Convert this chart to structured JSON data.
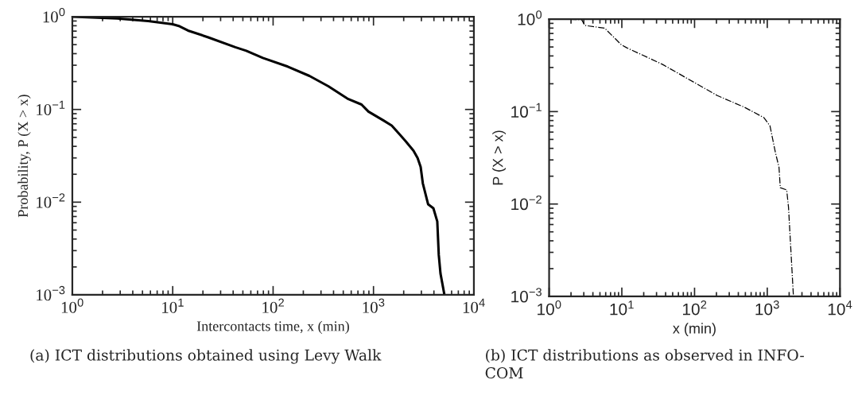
{
  "chart_data": [
    {
      "type": "line",
      "xlabel": "Intercontacts time, x (min)",
      "ylabel": "Probability, P (X > x)",
      "log": "xy",
      "grid": false,
      "marker": "none",
      "xlim": [
        1,
        10000
      ],
      "ylim": [
        0.001,
        1
      ],
      "xticks": [
        {
          "value": 1,
          "label": "10$^{0}$"
        },
        {
          "value": 10,
          "label": "10$^{1}$"
        },
        {
          "value": 100,
          "label": "10$^{2}$"
        },
        {
          "value": 1000,
          "label": "10$^{3}$"
        },
        {
          "value": 10000,
          "label": "10$^{4}$"
        }
      ],
      "yticks": [
        {
          "value": 0.001,
          "label": "10$^{−3}$"
        },
        {
          "value": 0.01,
          "label": "10$^{−2}$"
        },
        {
          "value": 0.1,
          "label": "10$^{−1}$"
        },
        {
          "value": 1,
          "label": "10$^{0}$"
        }
      ],
      "series": [
        {
          "color": "#000000",
          "line_style": "solid",
          "x": [
            1,
            2.8,
            5.7,
            10,
            11.7,
            14.2,
            22.6,
            42,
            54,
            79,
            140,
            230,
            355,
            550,
            760,
            890,
            1260,
            1520,
            1820,
            2070,
            2500,
            2750,
            2950,
            3100,
            3500,
            3950,
            4320,
            4470,
            4650,
            5090
          ],
          "values": [
            1,
            0.96,
            0.9,
            0.83,
            0.79,
            0.71,
            0.6,
            0.47,
            0.43,
            0.36,
            0.29,
            0.23,
            0.178,
            0.131,
            0.113,
            0.095,
            0.076,
            0.067,
            0.054,
            0.046,
            0.036,
            0.03,
            0.024,
            0.016,
            0.0095,
            0.0086,
            0.0062,
            0.0027,
            0.0017,
            0.001
          ]
        }
      ],
      "annotations": [
        "(a) ICT distributions obtained using Levy Walk"
      ]
    },
    {
      "type": "line",
      "xlabel": "x (min)",
      "ylabel": "P (X > x)",
      "log": "xy",
      "grid": false,
      "marker": "none",
      "xlim": [
        1,
        10000
      ],
      "ylim": [
        0.001,
        1
      ],
      "xticks": [
        {
          "value": 1,
          "label": "10$^{0}$"
        },
        {
          "value": 10,
          "label": "10$^{1}$"
        },
        {
          "value": 100,
          "label": "10$^{2}$"
        },
        {
          "value": 1000,
          "label": "10$^{3}$"
        },
        {
          "value": 10000,
          "label": "10$^{4}$"
        }
      ],
      "yticks": [
        {
          "value": 0.001,
          "label": "10$^{−3}$"
        },
        {
          "value": 0.01,
          "label": "10$^{−2}$"
        },
        {
          "value": 0.1,
          "label": "10$^{−1}$"
        },
        {
          "value": 1,
          "label": "10$^{0}$"
        }
      ],
      "series": [
        {
          "color": "#000000",
          "line_style": "dashdot",
          "x": [
            1,
            2.8,
            3.1,
            5.8,
            9.8,
            11.7,
            36,
            206,
            490,
            900,
            1090,
            1300,
            1450,
            1510,
            1850,
            1960,
            2290
          ],
          "values": [
            1,
            0.99,
            0.855,
            0.8,
            0.53,
            0.49,
            0.325,
            0.149,
            0.111,
            0.086,
            0.07,
            0.0355,
            0.025,
            0.015,
            0.0142,
            0.0092,
            0.001
          ]
        }
      ],
      "annotations": [
        "(b) ICT distributions as observed in INFO-\nCOM"
      ]
    }
  ]
}
